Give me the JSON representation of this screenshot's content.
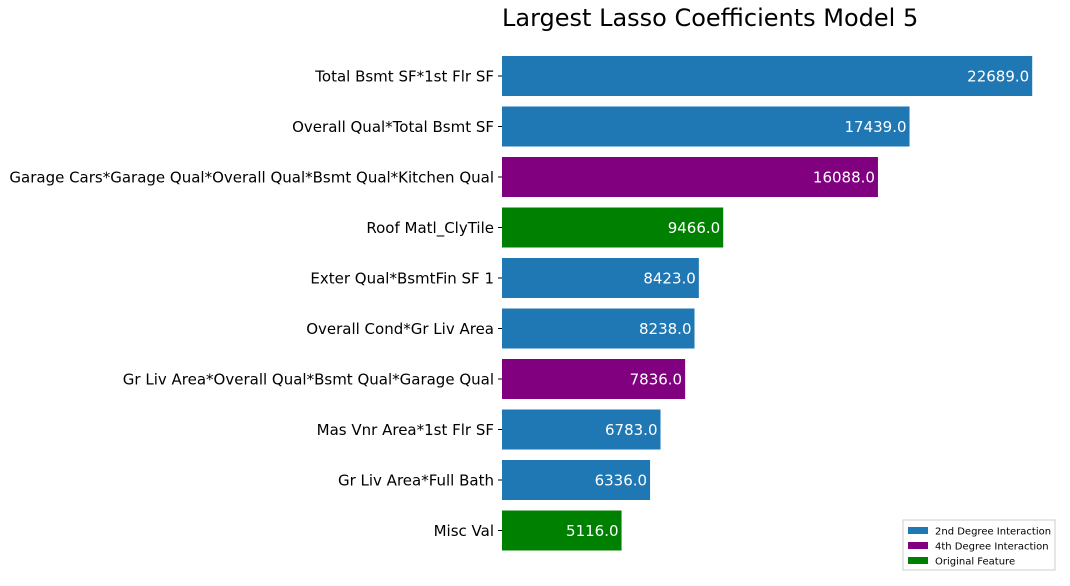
{
  "chart_data": {
    "type": "bar",
    "orientation": "horizontal",
    "title": "Largest Lasso Coefficients Model 5",
    "xlabel": "",
    "ylabel": "",
    "xlim": [
      0,
      23450
    ],
    "grid": false,
    "legend_position": "bottom-right",
    "categories": [
      "Total Bsmt SF*1st Flr SF",
      "Overall Qual*Total Bsmt SF",
      "Garage Cars*Garage Qual*Overall Qual*Bsmt Qual*Kitchen Qual",
      "Roof Matl_ClyTile",
      "Exter Qual*BsmtFin SF 1",
      "Overall Cond*Gr Liv Area",
      "Gr Liv Area*Overall Qual*Bsmt Qual*Garage Qual",
      "Mas Vnr Area*1st Flr SF",
      "Gr Liv Area*Full Bath",
      "Misc Val"
    ],
    "values": [
      22689.0,
      17439.0,
      16088.0,
      9466.0,
      8423.0,
      8238.0,
      7836.0,
      6783.0,
      6336.0,
      5116.0
    ],
    "value_labels": [
      "22689.0",
      "17439.0",
      "16088.0",
      "9466.0",
      "8423.0",
      "8238.0",
      "7836.0",
      "6783.0",
      "6336.0",
      "5116.0"
    ],
    "groups": [
      "2nd Degree Interaction",
      "2nd Degree Interaction",
      "4th Degree Interaction",
      "Original Feature",
      "2nd Degree Interaction",
      "2nd Degree Interaction",
      "4th Degree Interaction",
      "2nd Degree Interaction",
      "2nd Degree Interaction",
      "Original Feature"
    ],
    "legend": [
      {
        "label": "2nd Degree Interaction",
        "color": "#1f77b4"
      },
      {
        "label": "4th Degree Interaction",
        "color": "#800080"
      },
      {
        "label": "Original Feature",
        "color": "#008000"
      }
    ]
  }
}
